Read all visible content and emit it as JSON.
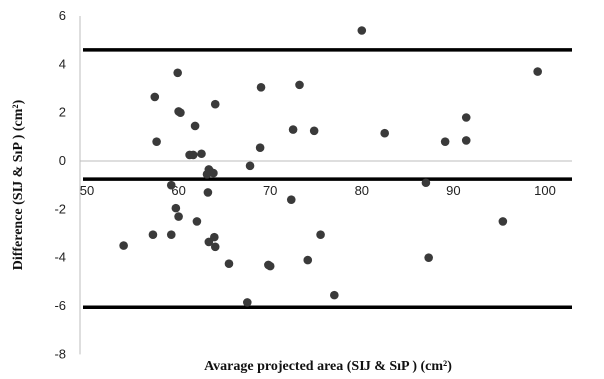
{
  "chart_data": {
    "type": "scatter",
    "xlabel": "Avarage projected area (SĲ & SıP ) (cm²)",
    "ylabel": "Difference (SĲ & SıP ) (cm²)",
    "xlim": [
      50,
      105
    ],
    "ylim": [
      -8,
      6
    ],
    "x_ticks": [
      "50",
      "60",
      "70",
      "80",
      "90",
      "100"
    ],
    "y_ticks": [
      "6",
      "4",
      "2",
      "0",
      "-2",
      "-4",
      "-6",
      "-8"
    ],
    "grid": false,
    "reference_lines": [
      {
        "name": "upper limit",
        "y": 4.6
      },
      {
        "name": "mean",
        "y": -0.75
      },
      {
        "name": "lower limit",
        "y": -6.05
      }
    ],
    "points": [
      [
        80.0,
        5.4
      ],
      [
        99.2,
        3.7
      ],
      [
        59.9,
        3.65
      ],
      [
        73.2,
        3.15
      ],
      [
        69.0,
        3.05
      ],
      [
        57.4,
        2.65
      ],
      [
        64.0,
        2.35
      ],
      [
        60.0,
        2.05
      ],
      [
        60.2,
        2.0
      ],
      [
        91.4,
        1.8
      ],
      [
        61.8,
        1.45
      ],
      [
        72.5,
        1.3
      ],
      [
        74.8,
        1.25
      ],
      [
        82.5,
        1.15
      ],
      [
        91.4,
        0.85
      ],
      [
        57.6,
        0.8
      ],
      [
        89.1,
        0.8
      ],
      [
        68.9,
        0.55
      ],
      [
        62.5,
        0.3
      ],
      [
        61.2,
        0.25
      ],
      [
        61.6,
        0.25
      ],
      [
        67.8,
        -0.2
      ],
      [
        63.3,
        -0.35
      ],
      [
        63.5,
        -0.45
      ],
      [
        63.8,
        -0.5
      ],
      [
        63.1,
        -0.55
      ],
      [
        87.0,
        -0.9
      ],
      [
        59.2,
        -1.0
      ],
      [
        63.2,
        -1.3
      ],
      [
        72.3,
        -1.6
      ],
      [
        59.7,
        -1.95
      ],
      [
        60.0,
        -2.3
      ],
      [
        62.0,
        -2.5
      ],
      [
        95.4,
        -2.5
      ],
      [
        57.2,
        -3.05
      ],
      [
        59.2,
        -3.05
      ],
      [
        75.5,
        -3.05
      ],
      [
        63.9,
        -3.15
      ],
      [
        63.3,
        -3.35
      ],
      [
        54.0,
        -3.5
      ],
      [
        64.0,
        -3.55
      ],
      [
        87.3,
        -4.0
      ],
      [
        74.1,
        -4.1
      ],
      [
        65.5,
        -4.25
      ],
      [
        69.8,
        -4.3
      ],
      [
        70.0,
        -4.35
      ],
      [
        77.0,
        -5.55
      ],
      [
        67.5,
        -5.85
      ]
    ]
  }
}
